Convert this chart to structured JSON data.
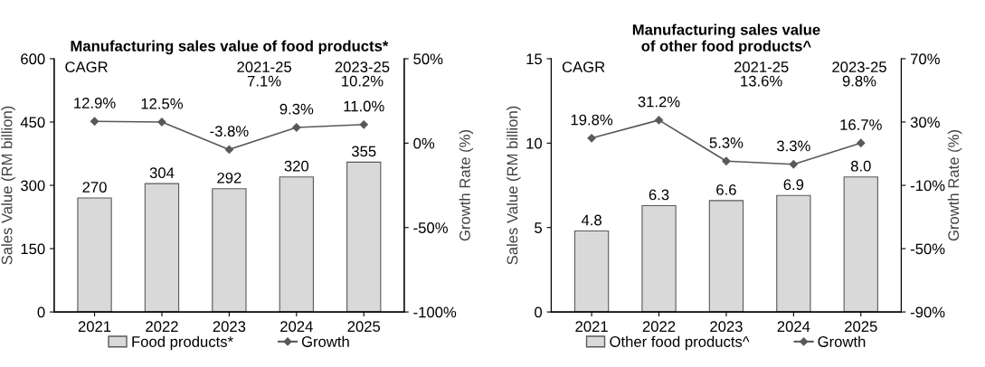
{
  "chart_data": [
    {
      "type": "bar",
      "title": "Manufacturing sales value of food products*",
      "ylabel": "Sales Value (RM billion)",
      "y2label": "Growth Rate (%)",
      "categories": [
        "2021",
        "2022",
        "2023",
        "2024",
        "2025"
      ],
      "series": [
        {
          "name": "Food products*",
          "color": "#d9d9d9",
          "values": [
            270,
            304,
            292,
            320,
            355
          ],
          "value_labels": [
            "270",
            "304",
            "292",
            "320",
            "355"
          ]
        },
        {
          "name": "Growth",
          "type": "line",
          "axis": "y2",
          "color": "#595959",
          "values": [
            12.9,
            12.5,
            -3.8,
            9.3,
            11.0
          ],
          "value_labels": [
            "12.9%",
            "12.5%",
            "-3.8%",
            "9.3%",
            "11.0%"
          ]
        }
      ],
      "ylim": [
        0,
        600
      ],
      "yticks": [
        0,
        150,
        300,
        450,
        600
      ],
      "y2lim": [
        -100,
        50
      ],
      "y2ticks": [
        {
          "value": -100,
          "label": "-100%"
        },
        {
          "value": -50,
          "label": "-50%"
        },
        {
          "value": 0,
          "label": "0%"
        },
        {
          "value": 50,
          "label": "50%"
        }
      ],
      "annotations": [
        "CAGR",
        "2021-25\n7.1%",
        "2023-25\n10.2%"
      ],
      "marker": "diamond",
      "legend": "bottom",
      "grid": false
    },
    {
      "type": "bar",
      "title": "Manufacturing sales value\nof other food products^",
      "ylabel": "Sales Value (RM billion)",
      "y2label": "Growth Rate (%)",
      "categories": [
        "2021",
        "2022",
        "2023",
        "2024",
        "2025"
      ],
      "series": [
        {
          "name": "Other food products^",
          "color": "#d9d9d9",
          "values": [
            4.8,
            6.3,
            6.6,
            6.9,
            8.0
          ],
          "value_labels": [
            "4.8",
            "6.3",
            "6.6",
            "6.9",
            "8.0"
          ]
        },
        {
          "name": "Growth",
          "type": "line",
          "axis": "y2",
          "color": "#595959",
          "values": [
            19.8,
            31.2,
            5.3,
            3.3,
            16.7
          ],
          "value_labels": [
            "19.8%",
            "31.2%",
            "5.3%",
            "3.3%",
            "16.7%"
          ]
        }
      ],
      "ylim": [
        0,
        15
      ],
      "yticks": [
        0,
        5,
        10,
        15
      ],
      "y2lim": [
        -90,
        70
      ],
      "y2ticks": [
        {
          "value": -90,
          "label": "-90%"
        },
        {
          "value": -50,
          "label": "-50%"
        },
        {
          "value": -10,
          "label": "-10%"
        },
        {
          "value": 30,
          "label": "30%"
        },
        {
          "value": 70,
          "label": "70%"
        }
      ],
      "annotations": [
        "CAGR",
        "2021-25\n13.6%",
        "2023-25\n9.8%"
      ],
      "marker": "diamond",
      "legend": "bottom",
      "grid": false
    }
  ]
}
